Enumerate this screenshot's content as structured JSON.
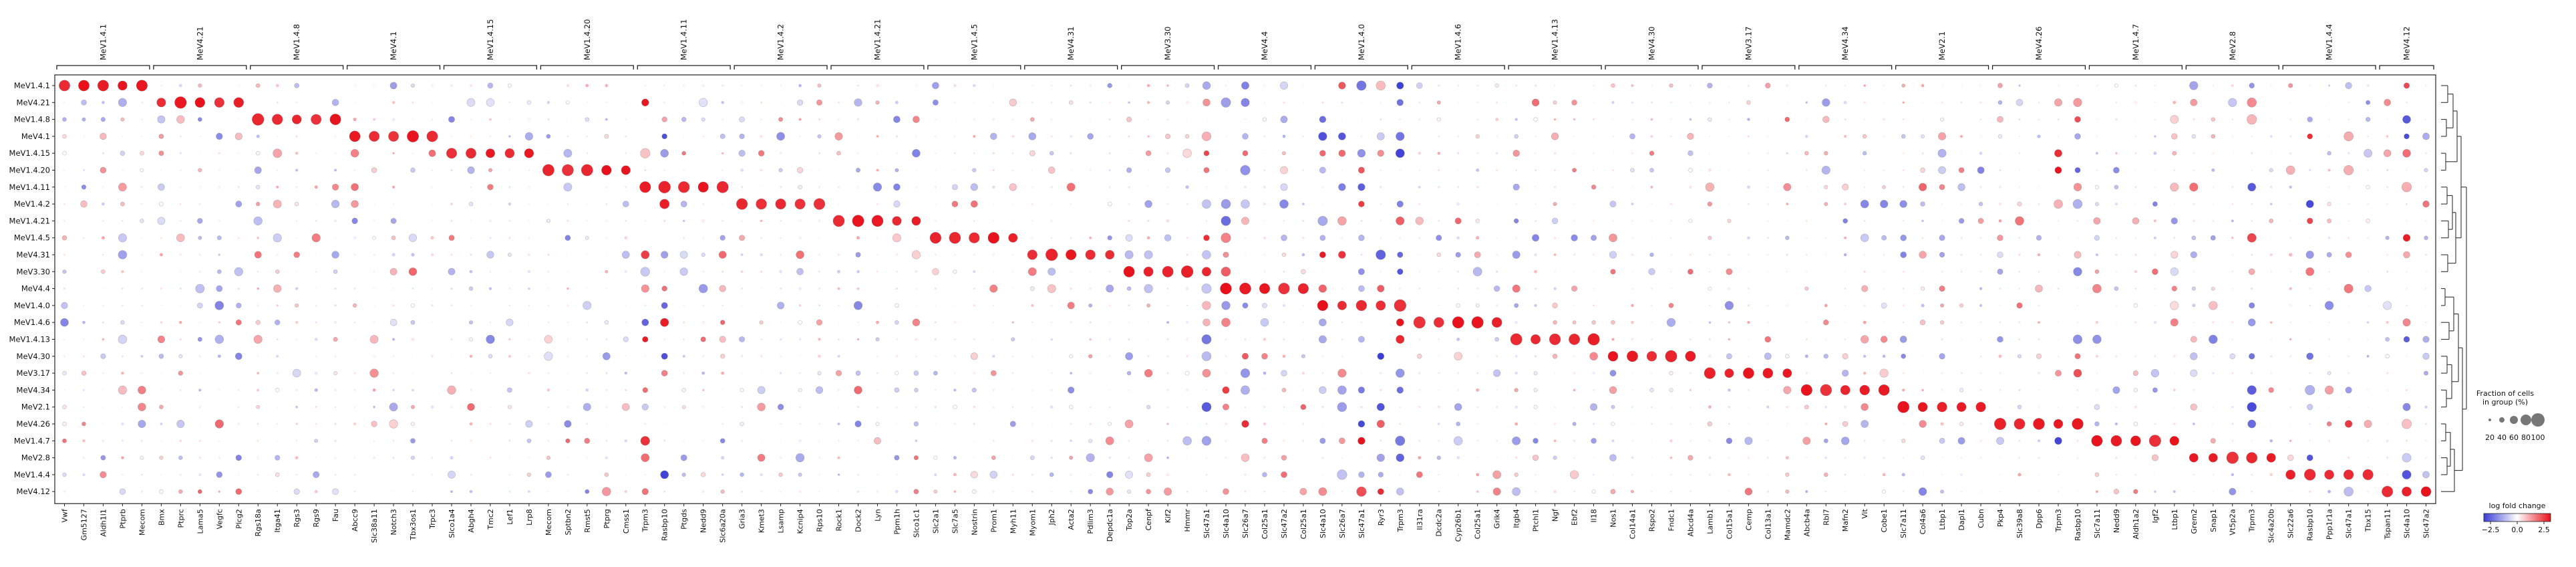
{
  "chart_data": {
    "type": "dotplot",
    "groups": [
      "MeV1.4.1",
      "MeV4.21",
      "MeV1.4.8",
      "MeV4.1",
      "MeV1.4.15",
      "MeV1.4.20",
      "MeV1.4.11",
      "MeV1.4.2",
      "MeV1.4.21",
      "MeV1.4.5",
      "MeV4.31",
      "MeV3.30",
      "MeV4.4",
      "MeV1.4.0",
      "MeV1.4.6",
      "MeV1.4.13",
      "MeV4.30",
      "MeV3.17",
      "MeV4.34",
      "MeV2.1",
      "MeV4.26",
      "MeV1.4.7",
      "MeV2.8",
      "MeV1.4.4",
      "MeV4.12"
    ],
    "genes_per_group": [
      [
        "Vwf",
        "Gm5127",
        "Aldh1l1",
        "Ptprb",
        "Mecom"
      ],
      [
        "Bmx",
        "Ptprc",
        "Lama5",
        "Vegfc",
        "Plcg2"
      ],
      [
        "Rgs18a",
        "Itga41",
        "Rgs3",
        "Rgs9",
        "Fau"
      ],
      [
        "Abcc9",
        "Slc38a11",
        "Notch3",
        "Tbx3os1",
        "Trpc3"
      ],
      [
        "Slco1a4",
        "Abgh4",
        "Tmc2",
        "Lef1",
        "Lrp8"
      ],
      [
        "Mecom",
        "Sptbn2",
        "Rmst5",
        "Ptprg",
        "Cmss1"
      ],
      [
        "Trpm3",
        "Rasbp10",
        "Ptgds",
        "Nedd9",
        "Slc6a20a"
      ],
      [
        "Gria3",
        "Kmet3",
        "Lsamp",
        "Kcnip4",
        "Rps10"
      ],
      [
        "Rock1",
        "Dock2",
        "Lyn",
        "Ppm1h",
        "Slco1c1"
      ],
      [
        "Slc2a1",
        "Slc7a5",
        "Nostrin",
        "Prom1",
        "Myh11"
      ],
      [
        "Myom1",
        "Jph2",
        "Acta2",
        "Pdlim3",
        "Depdc1a"
      ],
      [
        "Top2a",
        "Cenpf",
        "Kif2",
        "Hmmr",
        "Slc47a1"
      ],
      [
        "Slc4a10",
        "Slc26a7",
        "Col25a1",
        "Slc47a2",
        "Col25a1"
      ],
      [
        "Slc4a10",
        "Slc26a7",
        "Slc47a1",
        "Ryr3",
        "Trpm3"
      ],
      [
        "Il31ra",
        "Dcdc2a",
        "Cyp26b1",
        "Col25a1",
        "Grik4"
      ],
      [
        "Itgb4",
        "Ptchl1",
        "Ngf",
        "Ebf2",
        "Il18"
      ],
      [
        "Nos1",
        "Col14a1",
        "Rspo2",
        "Fndc1",
        "Abcd4a"
      ],
      [
        "Lamb1",
        "Col15a1",
        "Cemp",
        "Col13a1",
        "Mamdc2"
      ],
      [
        "Abcb4a",
        "Rbl7",
        "Mafn2",
        "Vit",
        "Cobe1"
      ],
      [
        "Slc7a11",
        "Col4a6",
        "Ltbp1",
        "Dapl1",
        "Cubn"
      ],
      [
        "Pkp4",
        "Slc39a8",
        "Dpp6",
        "Trpm3",
        "Rasbp10"
      ],
      [
        "Slc7a11",
        "Nedd9",
        "Aldh1a2",
        "Igf2",
        "Ltbp1"
      ],
      [
        "Grem2",
        "Snap1",
        "Vt5p2a",
        "Trpm3",
        "Slc4a20b"
      ],
      [
        "Slc22a6",
        "Rasbp10",
        "Ppp1r1a",
        "Slc47a1",
        "Tbx15"
      ],
      [
        "Tspan11",
        "Slc4a10",
        "Slc47a2"
      ]
    ],
    "color_legend": {
      "title": "log fold change",
      "ticks": [
        "−2.5",
        "0.0",
        "2.5"
      ],
      "colors": [
        "#3a3dd6",
        "#ffffff",
        "#e8101a"
      ]
    },
    "size_legend": {
      "title_line1": "Fraction of cells",
      "title_line2": "in group (%)",
      "ticks": [
        "20",
        "40",
        "60",
        "80",
        "100"
      ]
    },
    "note": "Matrix of 25 cell groups (rows) by top marker genes (columns); dot size = fraction of cells expressing, color = log fold change. Strong red diagonal blocks where each group meets its own markers; recurring markers (Trpm3, Slc4a10, Slc47a1, Ryr3) are shared by several groups."
  }
}
